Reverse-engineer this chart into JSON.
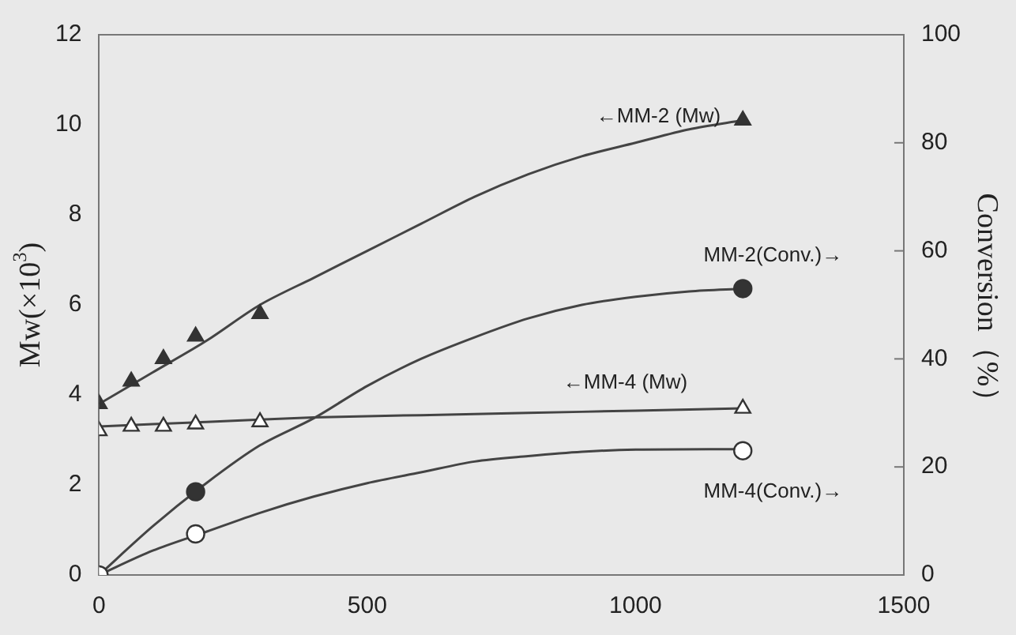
{
  "chart_data": {
    "type": "scatter",
    "ylabel": "Mw(×10$^{3}$)",
    "y2label": "Conversion（%）",
    "xlim": [
      0,
      1500
    ],
    "xticks": [
      0,
      500,
      1000,
      1500
    ],
    "ylim": [
      0,
      12
    ],
    "yticks": [
      0,
      2,
      4,
      6,
      8,
      10,
      12
    ],
    "y2lim": [
      0,
      100
    ],
    "y2ticks": [
      0,
      20,
      40,
      60,
      80,
      100
    ],
    "grid": false,
    "legend": false,
    "series": [
      {
        "type": "line",
        "marker": "none",
        "color": "#444444",
        "x": [
          0,
          100,
          200,
          300,
          400,
          500,
          600,
          700,
          800,
          900,
          1000,
          1100,
          1200
        ],
        "values": [
          3.8,
          4.5,
          5.2,
          6.0,
          6.6,
          7.2,
          7.8,
          8.4,
          8.9,
          9.3,
          9.6,
          9.9,
          10.1
        ]
      },
      {
        "type": "line",
        "marker": "none",
        "color": "#444444",
        "x": [
          0,
          200,
          400,
          600,
          800,
          1000,
          1200
        ],
        "values": [
          3.3,
          3.4,
          3.5,
          3.55,
          3.6,
          3.65,
          3.7
        ]
      },
      {
        "type": "line",
        "marker": "none",
        "color": "#444444",
        "axis": "y2",
        "x": [
          0,
          100,
          200,
          300,
          400,
          500,
          600,
          700,
          800,
          900,
          1000,
          1100,
          1200
        ],
        "values": [
          0,
          9,
          17,
          24,
          29,
          35,
          40,
          44,
          47.5,
          50,
          51.5,
          52.5,
          53
        ]
      },
      {
        "type": "line",
        "marker": "none",
        "color": "#444444",
        "axis": "y2",
        "x": [
          0,
          100,
          200,
          300,
          400,
          500,
          600,
          700,
          800,
          900,
          1000,
          1200
        ],
        "values": [
          0,
          4.5,
          8,
          11.5,
          14.5,
          17,
          19,
          21,
          22,
          22.8,
          23.2,
          23.3
        ]
      },
      {
        "type": "scatter",
        "name": "←MM-2 (Mw)",
        "marker": "triangle",
        "color": "#333333",
        "x": [
          0,
          60,
          120,
          180,
          300,
          1200
        ],
        "values": [
          3.8,
          4.3,
          4.8,
          5.3,
          5.8,
          10.1
        ]
      },
      {
        "type": "scatter",
        "name": "←MM-4 (Mw)",
        "marker": "triangle",
        "color": "#ffffff",
        "x": [
          0,
          60,
          120,
          180,
          300,
          1200
        ],
        "values": [
          3.2,
          3.3,
          3.3,
          3.35,
          3.4,
          3.7
        ]
      },
      {
        "type": "scatter",
        "name": "MM-2(Conv.)→",
        "marker": "circle",
        "color": "#333333",
        "axis": "y2",
        "x": [
          180,
          1200
        ],
        "values": [
          15.4,
          53
        ]
      },
      {
        "type": "scatter",
        "name": "MM-4(Conv.)→",
        "marker": "circle",
        "color": "#ffffff",
        "axis": "y2",
        "x": [
          0,
          180,
          1200
        ],
        "values": [
          0,
          7.6,
          23
        ]
      }
    ]
  }
}
